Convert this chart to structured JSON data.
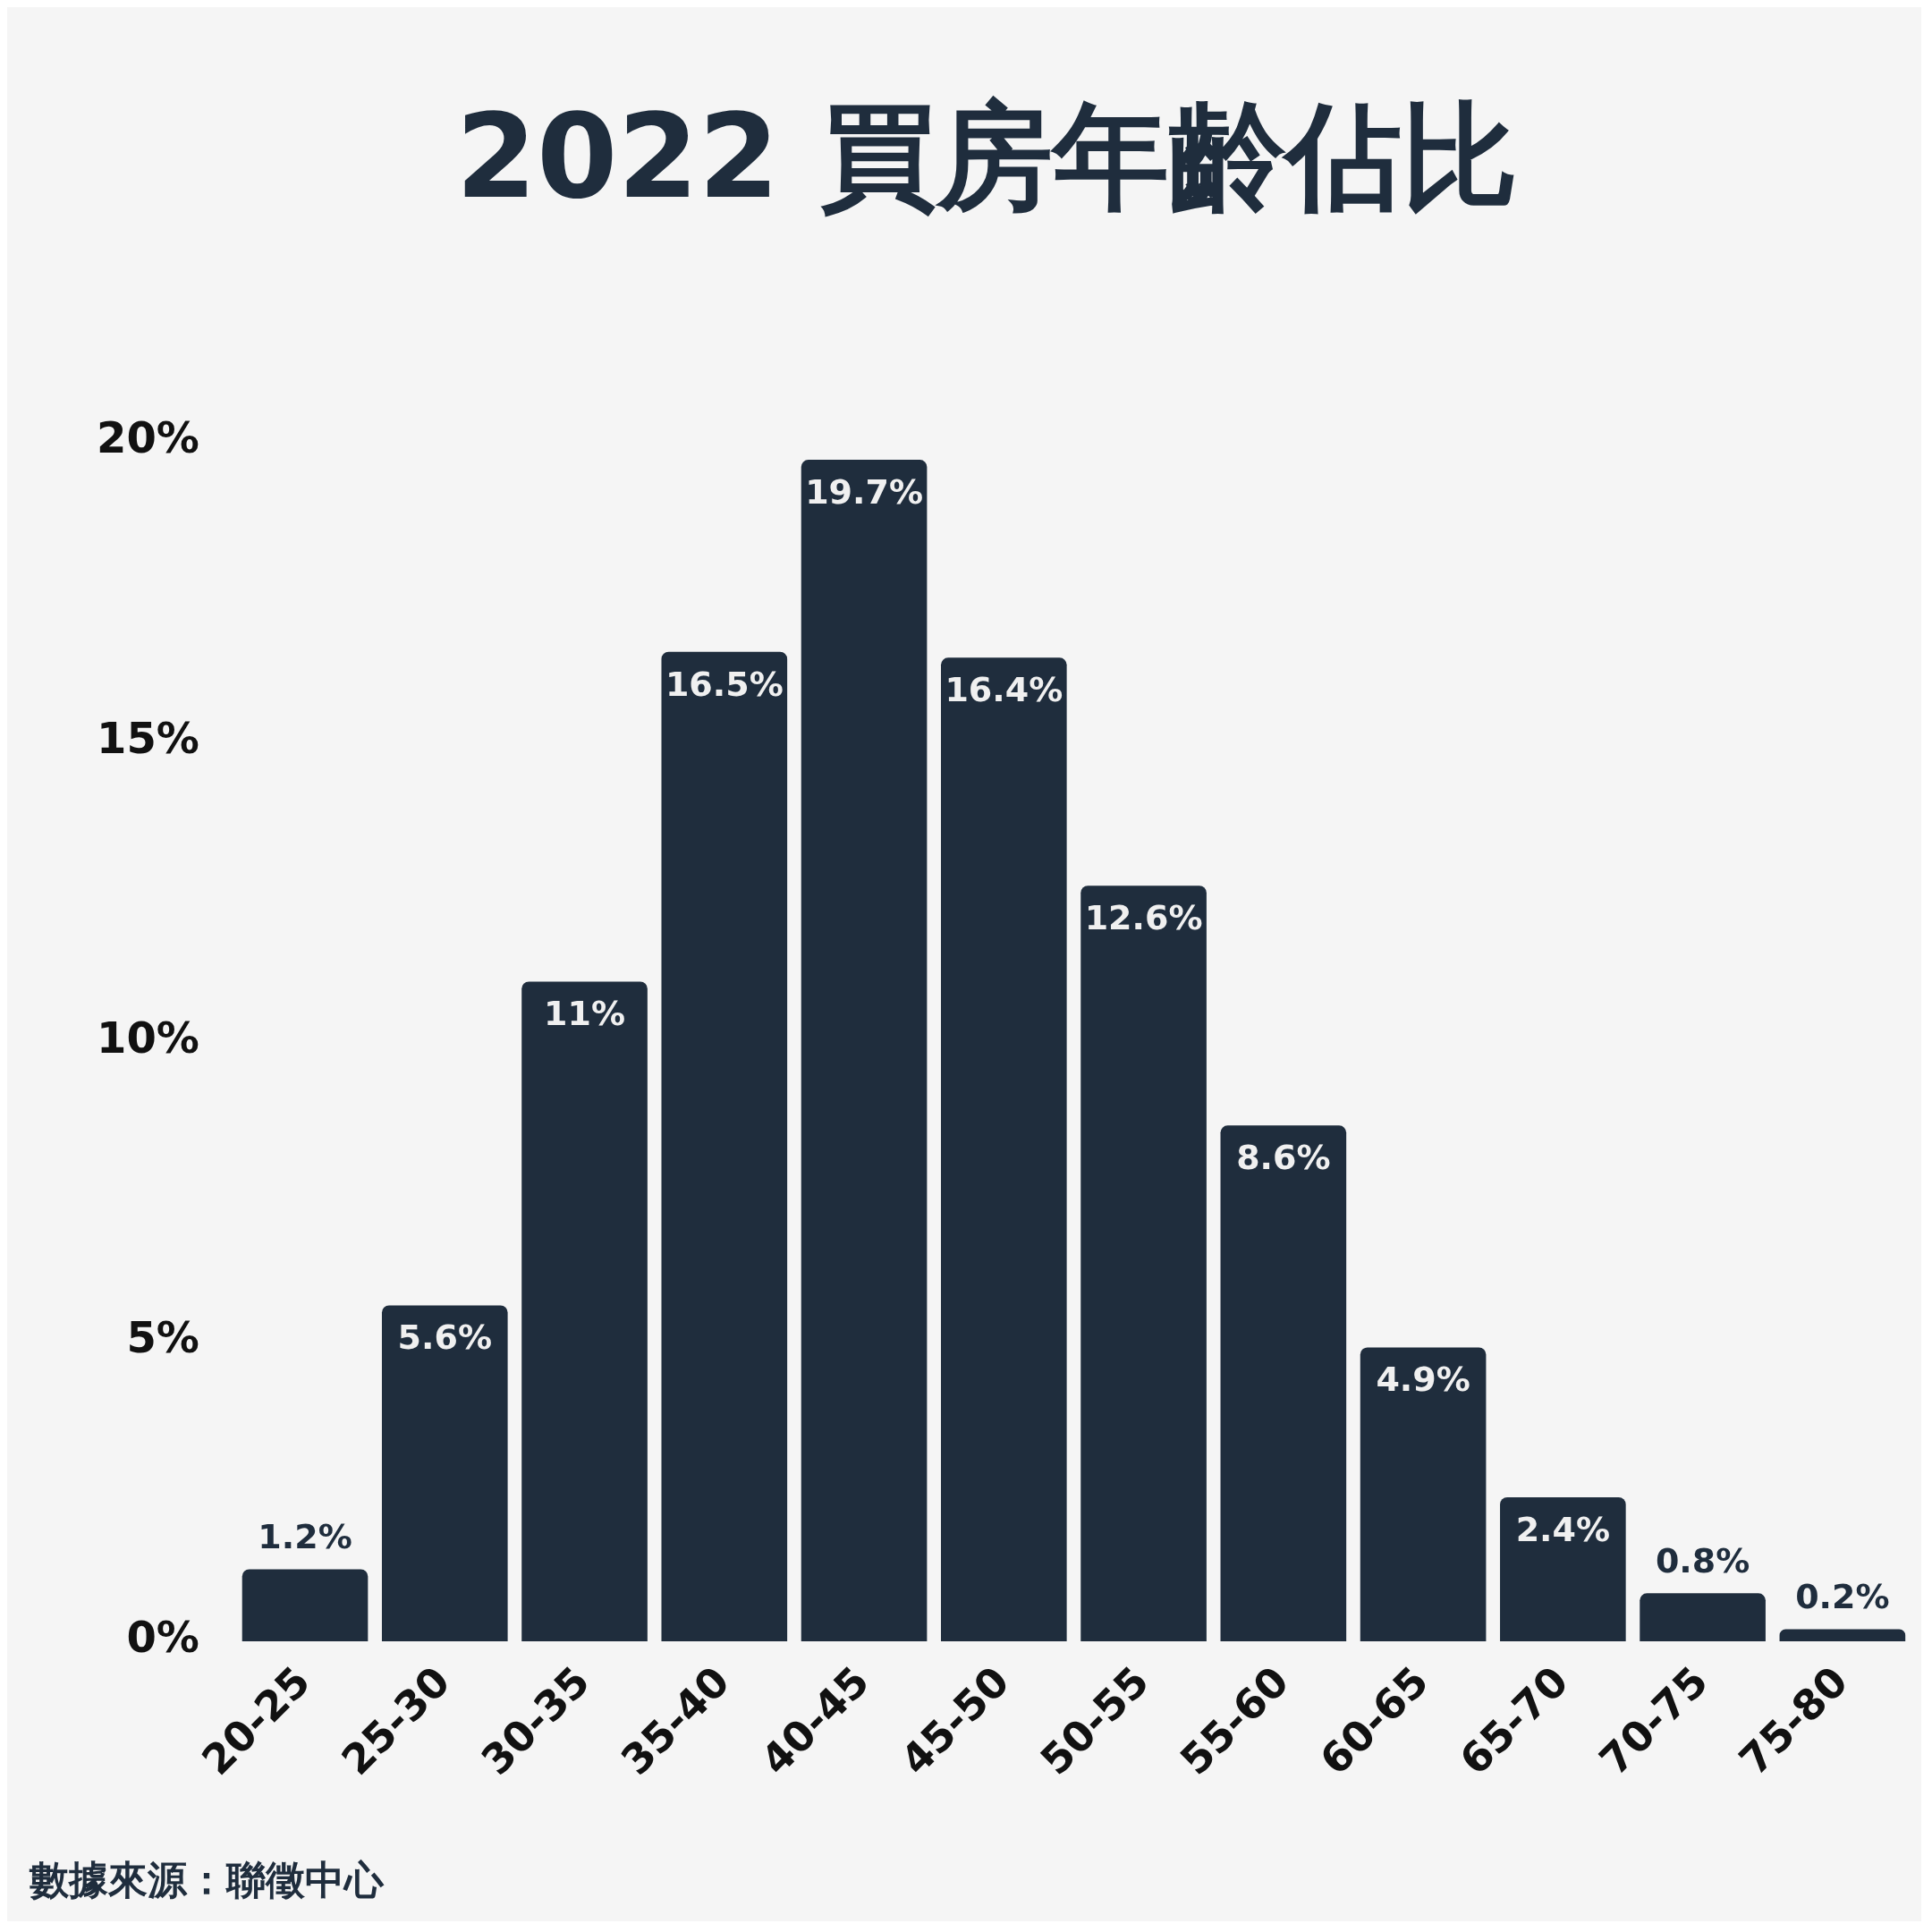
{
  "chart_data": {
    "type": "bar",
    "title": "2022 買房年齡佔比",
    "categories": [
      "20-25",
      "25-30",
      "30-35",
      "35-40",
      "40-45",
      "45-50",
      "50-55",
      "55-60",
      "60-65",
      "65-70",
      "70-75",
      "75-80"
    ],
    "values": [
      1.2,
      5.6,
      11,
      16.5,
      19.7,
      16.4,
      12.6,
      8.6,
      4.9,
      2.4,
      0.8,
      0.2
    ],
    "value_labels": [
      "1.2%",
      "5.6%",
      "11%",
      "16.5%",
      "19.7%",
      "16.4%",
      "12.6%",
      "8.6%",
      "4.9%",
      "2.4%",
      "0.8%",
      "0.2%"
    ],
    "color": "#1f2d3d",
    "ylim": [
      0,
      20
    ],
    "yticks": [
      {
        "value": 0,
        "label": "0%"
      },
      {
        "value": 5,
        "label": "5%"
      },
      {
        "value": 10,
        "label": "10%"
      },
      {
        "value": 15,
        "label": "15%"
      },
      {
        "value": 20,
        "label": "20%"
      }
    ],
    "grid": false,
    "legend": false,
    "annotations": [
      "數據來源：聯徵中心"
    ]
  }
}
